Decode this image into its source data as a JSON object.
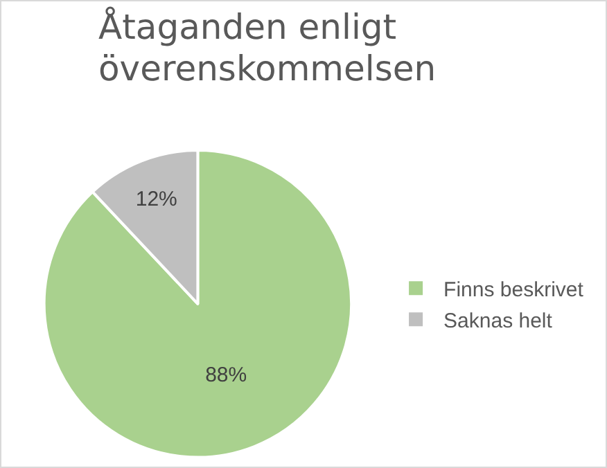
{
  "chart_data": {
    "type": "pie",
    "title": "Åtaganden enligt överenskommelsen",
    "categories": [
      "Finns beskrivet",
      "Saknas helt"
    ],
    "values": [
      88,
      12
    ],
    "colors": [
      "#a9d18e",
      "#bfbfbf"
    ],
    "value_labels": [
      "88%",
      "12%"
    ],
    "legend": "right"
  }
}
